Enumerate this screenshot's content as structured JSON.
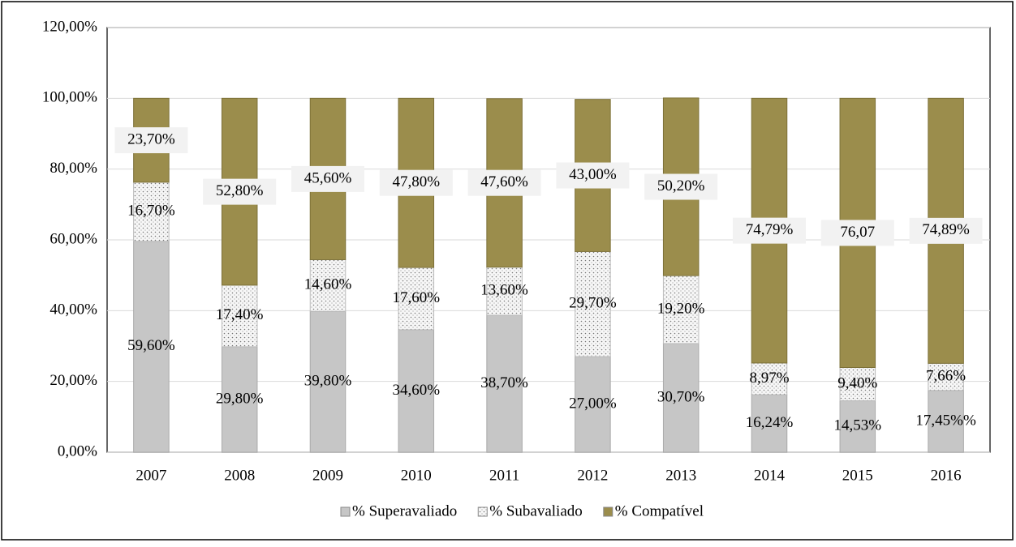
{
  "chart_data": {
    "type": "stacked_bar",
    "categories": [
      "2007",
      "2008",
      "2009",
      "2010",
      "2011",
      "2012",
      "2013",
      "2014",
      "2015",
      "2016"
    ],
    "series": [
      {
        "name": "% Superavaliado",
        "color": "#c6c6c6",
        "values": [
          59.6,
          29.8,
          39.8,
          34.6,
          38.7,
          27.0,
          30.7,
          16.24,
          14.53,
          17.45
        ],
        "value_labels": [
          "59,60%",
          "29,80%",
          "39,80%",
          "34,60%",
          "38,70%",
          "27,00%",
          "30,70%",
          "16,24%",
          "14,53%",
          "17,45%%"
        ]
      },
      {
        "name": "% Subavaliado",
        "color": "#f4f4f4",
        "values": [
          16.7,
          17.4,
          14.6,
          17.6,
          13.6,
          29.7,
          19.2,
          8.97,
          9.4,
          7.66
        ],
        "value_labels": [
          "16,70%",
          "17,40%",
          "14,60%",
          "17,60%",
          "13,60%",
          "29,70%",
          "19,20%",
          "8,97%",
          "9,40%",
          "7,66%"
        ]
      },
      {
        "name": "% Compatível",
        "color": "#9b8d4c",
        "values": [
          23.7,
          52.8,
          45.6,
          47.8,
          47.6,
          43.0,
          50.2,
          74.79,
          76.07,
          74.89
        ],
        "value_labels": [
          "23,70%",
          "52,80%",
          "45,60%",
          "47,80%",
          "47,60%",
          "43,00%",
          "50,20%",
          "74,79%",
          "76,07",
          "74,89%"
        ]
      }
    ],
    "ylim": [
      0,
      120
    ],
    "yticks": [
      {
        "value": 0,
        "label": "0,00%"
      },
      {
        "value": 20,
        "label": "20,00%"
      },
      {
        "value": 40,
        "label": "40,00%"
      },
      {
        "value": 60,
        "label": "60,00%"
      },
      {
        "value": 80,
        "label": "80,00%"
      },
      {
        "value": 100,
        "label": "100,00%"
      },
      {
        "value": 120,
        "label": "120,00%"
      }
    ],
    "grid": true,
    "legend": "bottom"
  }
}
